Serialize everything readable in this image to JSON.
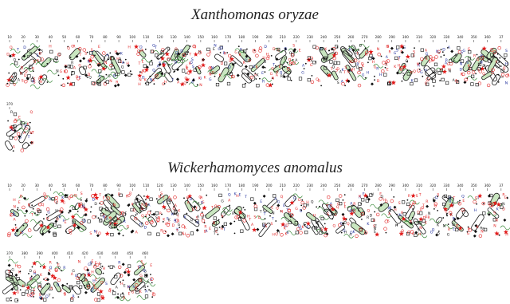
{
  "panels": [
    {
      "title": "Xanthomonas oryzae",
      "ruler_row1": [
        "10",
        "20",
        "30",
        "40",
        "50",
        "60",
        "70",
        "80",
        "90",
        "100",
        "110",
        "120",
        "130",
        "140",
        "150",
        "160",
        "170",
        "180",
        "190",
        "200",
        "210",
        "220",
        "230",
        "240",
        "250",
        "260",
        "270",
        "280",
        "290",
        "300",
        "310",
        "320",
        "330",
        "340",
        "350",
        "360",
        "37"
      ],
      "ruler_row2": [
        "370"
      ]
    },
    {
      "title": "Wickerhamomyces anomalus",
      "ruler_row1": [
        "10",
        "20",
        "30",
        "40",
        "50",
        "60",
        "70",
        "80",
        "90",
        "100",
        "110",
        "120",
        "130",
        "140",
        "150",
        "160",
        "170",
        "180",
        "190",
        "200",
        "210",
        "220",
        "230",
        "240",
        "250",
        "260",
        "270",
        "280",
        "290",
        "300",
        "310",
        "320",
        "330",
        "340",
        "350",
        "360",
        "37"
      ],
      "ruler_row2": [
        "370",
        "380",
        "390",
        "400",
        "410",
        "420",
        "430",
        "440",
        "450",
        "460"
      ]
    }
  ],
  "colors": {
    "helix_outline": "#1a1a1a",
    "helix_fill": "#c9e6c0",
    "backbone_green": "#3a8a3a",
    "residue_red": "#e02020",
    "residue_blue": "#1a2a9a",
    "residue_black": "#111111",
    "star": "#e01a1a"
  }
}
